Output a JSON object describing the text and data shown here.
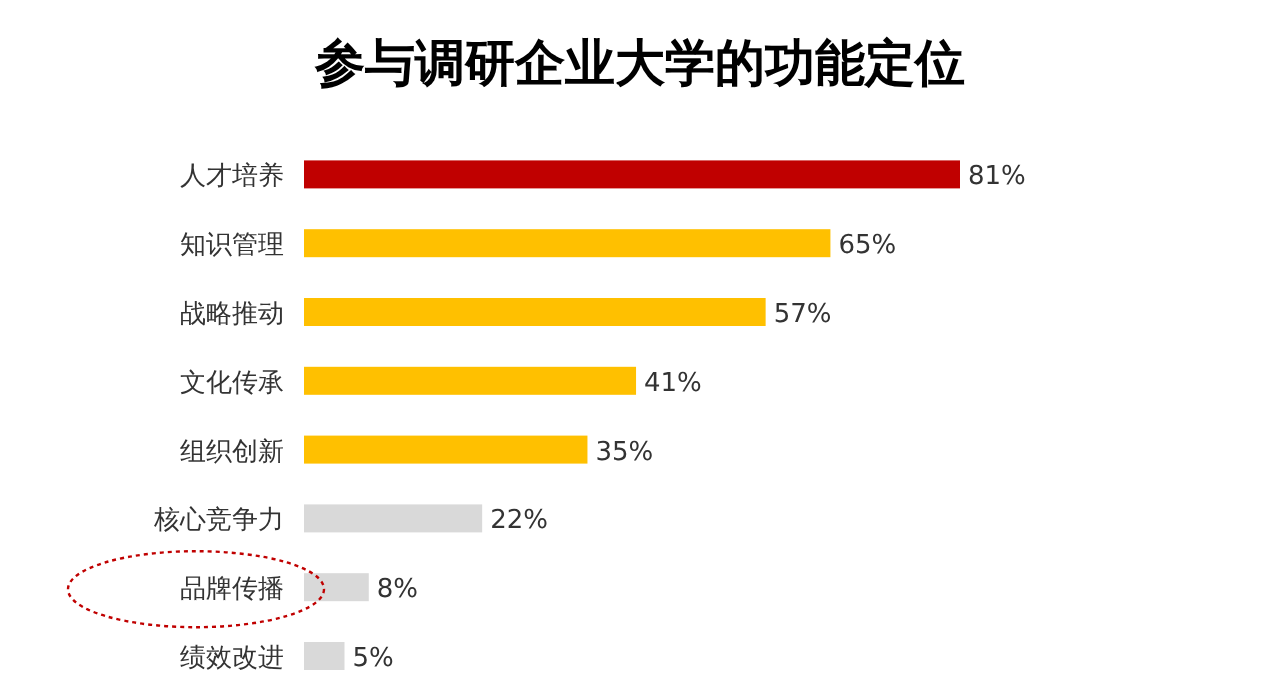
{
  "chart_data": {
    "type": "bar",
    "orientation": "horizontal",
    "title": "参与调研企业大学的功能定位",
    "categories": [
      "人才培养",
      "知识管理",
      "战略推动",
      "文化传承",
      "组织创新",
      "核心竞争力",
      "品牌传播",
      "绩效改进"
    ],
    "values": [
      81,
      65,
      57,
      41,
      35,
      22,
      8,
      5
    ],
    "colors": [
      "#c00000",
      "#ffc000",
      "#ffc000",
      "#ffc000",
      "#ffc000",
      "#d9d9d9",
      "#d9d9d9",
      "#d9d9d9"
    ],
    "value_labels": [
      "81%",
      "65%",
      "57%",
      "41%",
      "35%",
      "22%",
      "8%",
      "5%"
    ]
  }
}
